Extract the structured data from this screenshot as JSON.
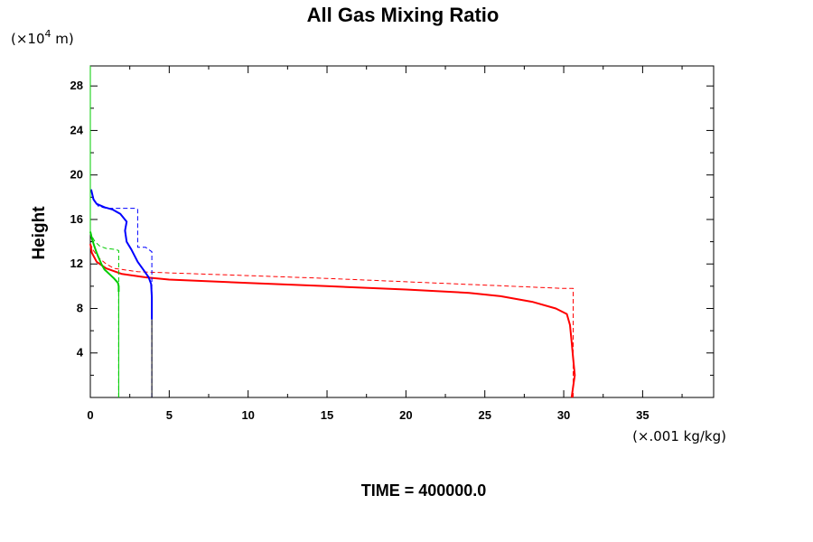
{
  "chart_data": {
    "type": "line",
    "title": "All Gas Mixing Ratio",
    "ylabel": "Height",
    "y_unit_prefix": "(×10",
    "y_unit_exp": "4",
    "y_unit_suffix": " m)",
    "x_unit": "(×.001 kg/kg)",
    "footer": "TIME = 400000.0",
    "xlim": [
      0,
      39.5
    ],
    "ylim": [
      0,
      29.8
    ],
    "x_ticks": [
      0,
      5,
      10,
      15,
      20,
      25,
      30,
      35
    ],
    "y_ticks": [
      4,
      8,
      12,
      16,
      20,
      24,
      28
    ],
    "grid": false,
    "series": [
      {
        "color": "#ff0000",
        "style": "solid",
        "width": 2,
        "x": [
          30.5,
          30.6,
          30.7,
          30.6,
          30.5,
          30.4,
          30.2,
          29.5,
          28,
          26,
          24,
          20,
          15,
          10,
          5,
          3.5,
          2,
          1,
          0.4,
          0.1,
          0
        ],
        "y": [
          0,
          1,
          2,
          3.5,
          5,
          6.5,
          7.5,
          8,
          8.6,
          9.1,
          9.4,
          9.7,
          10,
          10.3,
          10.6,
          10.8,
          11.1,
          11.6,
          12.2,
          13,
          13.8
        ]
      },
      {
        "color": "#ff0000",
        "style": "dashed",
        "width": 1,
        "x": [
          30.6,
          30.6,
          30,
          25,
          20,
          15,
          10,
          5,
          3,
          1.5,
          1,
          0.5,
          0.2,
          0
        ],
        "y": [
          0,
          9.8,
          9.8,
          10.1,
          10.4,
          10.7,
          10.95,
          11.2,
          11.3,
          11.6,
          12,
          12.6,
          13.2,
          13.8
        ]
      },
      {
        "color": "#0000ff",
        "style": "solid",
        "width": 2,
        "x": [
          3.9,
          3.9,
          3.85,
          3.7,
          3.4,
          3,
          2.6,
          2.3,
          2.2,
          2.3,
          1.9,
          1.4,
          0.9,
          0.4,
          0.2,
          0.05
        ],
        "y": [
          7,
          9,
          10.2,
          10.8,
          11.4,
          12.2,
          13.3,
          14,
          15,
          15.8,
          16.5,
          16.9,
          17.1,
          17.4,
          17.8,
          18.7
        ]
      },
      {
        "color": "#0000ff",
        "style": "dashed",
        "width": 1,
        "x": [
          3.9,
          3.9,
          3.5,
          3,
          3,
          2.9,
          2,
          1,
          0.5,
          0.15,
          0.05
        ],
        "y": [
          0,
          13.1,
          13.5,
          13.5,
          16.9,
          17,
          17,
          17,
          17.2,
          18,
          18.7
        ]
      },
      {
        "color": "#000000",
        "style": "solid",
        "width": 1,
        "x": [
          3.9,
          3.9
        ],
        "y": [
          0,
          7
        ]
      },
      {
        "color": "#00cc00",
        "style": "solid",
        "width": 2,
        "x": [
          1.8,
          1.8,
          1.75,
          1.5,
          1.2,
          0.9,
          0.7,
          0.55,
          0.4,
          0.25,
          0.1,
          0
        ],
        "y": [
          9.5,
          10,
          10.3,
          10.7,
          11.1,
          11.5,
          12,
          12.5,
          13,
          13.6,
          14.3,
          14.9
        ]
      },
      {
        "color": "#00cc00",
        "style": "solid",
        "width": 1,
        "x": [
          1.8,
          1.8
        ],
        "y": [
          0,
          9.5
        ]
      },
      {
        "color": "#00cc00",
        "style": "dashed",
        "width": 1,
        "x": [
          1.8,
          1.8,
          1.6,
          1,
          0.6,
          0.3,
          0.1,
          0
        ],
        "y": [
          0,
          13.2,
          13.3,
          13.4,
          13.6,
          14,
          14.5,
          14.9
        ]
      },
      {
        "color": "#00cc00",
        "style": "solid",
        "width": 1,
        "x": [
          0,
          0
        ],
        "y": [
          14.9,
          29.8
        ]
      }
    ]
  }
}
